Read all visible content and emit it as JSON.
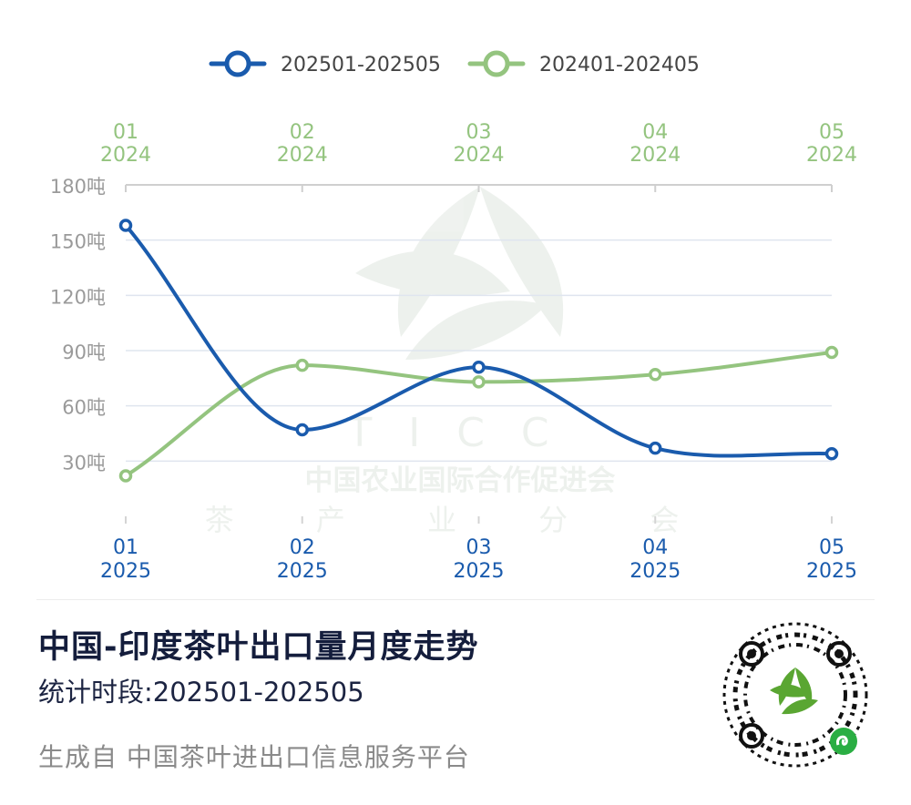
{
  "chart_data": {
    "type": "line",
    "legend_position": "top-center",
    "grid": true,
    "x_top": {
      "labels": [
        [
          "01",
          "2024"
        ],
        [
          "02",
          "2024"
        ],
        [
          "03",
          "2024"
        ],
        [
          "04",
          "2024"
        ],
        [
          "05",
          "2024"
        ]
      ],
      "color": "#94c47f"
    },
    "x_bottom": {
      "labels": [
        [
          "01",
          "2025"
        ],
        [
          "02",
          "2025"
        ],
        [
          "03",
          "2025"
        ],
        [
          "04",
          "2025"
        ],
        [
          "05",
          "2025"
        ]
      ],
      "color": "#1a5bad"
    },
    "y_axis": {
      "ylim": [
        0,
        180
      ],
      "ticks": [
        30,
        60,
        90,
        120,
        150,
        180
      ],
      "tick_labels": [
        "30吨",
        "60吨",
        "90吨",
        "120吨",
        "150吨",
        "180吨"
      ]
    },
    "series": [
      {
        "name": "202501-202505",
        "values": [
          158,
          47,
          81,
          37,
          34
        ],
        "color": "#1a5bad"
      },
      {
        "name": "202401-202405",
        "values": [
          22,
          82,
          73,
          77,
          89
        ],
        "color": "#94c47f"
      }
    ]
  },
  "watermark": {
    "logo_text": "TICC",
    "line1": "中国农业国际合作促进会",
    "line2": "茶 产 业 分 会"
  },
  "footer": {
    "title": "中国-印度茶叶出口量月度走势",
    "period": "统计时段:202501-202505",
    "source": "生成自 中国茶叶进出口信息服务平台"
  }
}
